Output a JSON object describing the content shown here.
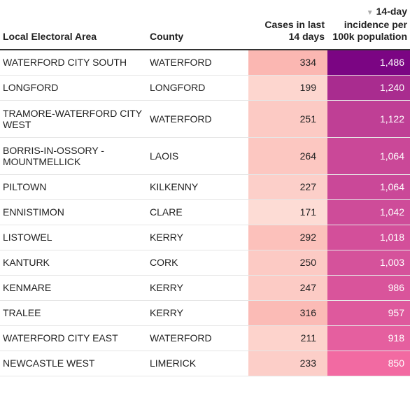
{
  "colors": {
    "cases_low": "#fddcd5",
    "cases_high": "#fbb7b2",
    "incidence_low": "#f26aa2",
    "incidence_high": "#7b0583"
  },
  "table": {
    "headers": {
      "area": "Local Electoral Area",
      "county": "County",
      "cases": "Cases in last 14 days",
      "incidence": "14-day incidence per 100k population",
      "sort_icon": "sort-desc-icon"
    }
  },
  "chart_data": {
    "type": "table",
    "columns": [
      "Local Electoral Area",
      "County",
      "Cases in last 14 days",
      "14-day incidence per 100k population"
    ],
    "rows": [
      {
        "area": "WATERFORD CITY SOUTH",
        "county": "WATERFORD",
        "cases": 334,
        "cases_label": "334",
        "incidence": 1486,
        "incidence_label": "1,486"
      },
      {
        "area": "LONGFORD",
        "county": "LONGFORD",
        "cases": 199,
        "cases_label": "199",
        "incidence": 1240,
        "incidence_label": "1,240"
      },
      {
        "area": "TRAMORE-WATERFORD CITY WEST",
        "county": "WATERFORD",
        "cases": 251,
        "cases_label": "251",
        "incidence": 1122,
        "incidence_label": "1,122"
      },
      {
        "area": "BORRIS-IN-OSSORY - MOUNTMELLICK",
        "county": "LAOIS",
        "cases": 264,
        "cases_label": "264",
        "incidence": 1064,
        "incidence_label": "1,064"
      },
      {
        "area": "PILTOWN",
        "county": "KILKENNY",
        "cases": 227,
        "cases_label": "227",
        "incidence": 1064,
        "incidence_label": "1,064"
      },
      {
        "area": "ENNISTIMON",
        "county": "CLARE",
        "cases": 171,
        "cases_label": "171",
        "incidence": 1042,
        "incidence_label": "1,042"
      },
      {
        "area": "LISTOWEL",
        "county": "KERRY",
        "cases": 292,
        "cases_label": "292",
        "incidence": 1018,
        "incidence_label": "1,018"
      },
      {
        "area": "KANTURK",
        "county": "CORK",
        "cases": 250,
        "cases_label": "250",
        "incidence": 1003,
        "incidence_label": "1,003"
      },
      {
        "area": "KENMARE",
        "county": "KERRY",
        "cases": 247,
        "cases_label": "247",
        "incidence": 986,
        "incidence_label": "986"
      },
      {
        "area": "TRALEE",
        "county": "KERRY",
        "cases": 316,
        "cases_label": "316",
        "incidence": 957,
        "incidence_label": "957"
      },
      {
        "area": "WATERFORD CITY EAST",
        "county": "WATERFORD",
        "cases": 211,
        "cases_label": "211",
        "incidence": 918,
        "incidence_label": "918"
      },
      {
        "area": "NEWCASTLE WEST",
        "county": "LIMERICK",
        "cases": 233,
        "cases_label": "233",
        "incidence": 850,
        "incidence_label": "850"
      }
    ],
    "sorted_by": "14-day incidence per 100k population",
    "sort_order": "descending"
  }
}
